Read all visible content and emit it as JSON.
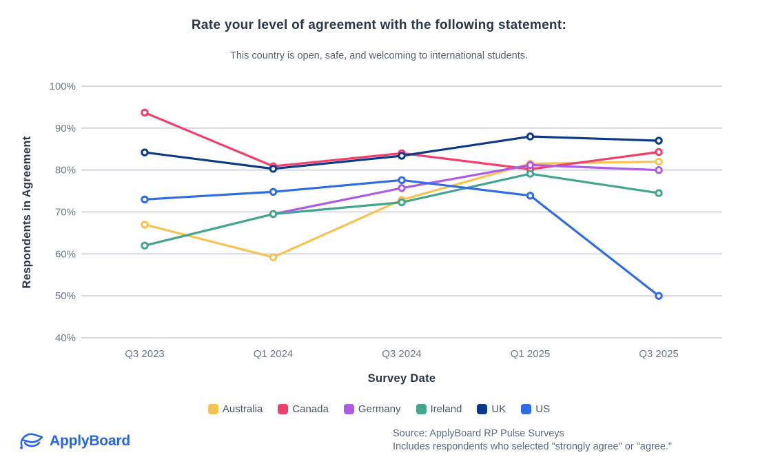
{
  "header": {
    "title": "Rate your level of agreement with the following statement:",
    "subtitle": "This country is open, safe, and welcoming to international students."
  },
  "chart_data": {
    "type": "line",
    "categories": [
      "Q3 2023",
      "Q1 2024",
      "Q3 2024",
      "Q1 2025",
      "Q3 2025"
    ],
    "xlabel": "Survey Date",
    "ylabel": "Respondents in Agreement",
    "ylim": [
      40,
      100
    ],
    "ytick_step": 10,
    "ytick_suffix": "%",
    "grid": "horizontal",
    "legend_position": "bottom",
    "series": [
      {
        "name": "Australia",
        "color": "#f6c353",
        "values": [
          67,
          59.2,
          72.9,
          81.5,
          82
        ]
      },
      {
        "name": "Canada",
        "color": "#f23e6b",
        "values": [
          93.7,
          80.9,
          84,
          80.2,
          84.3
        ]
      },
      {
        "name": "Germany",
        "color": "#ae5be8",
        "values": [
          null,
          69.5,
          75.7,
          81.2,
          80
        ]
      },
      {
        "name": "Ireland",
        "color": "#42a58c",
        "values": [
          62,
          69.5,
          72.3,
          79.1,
          74.5
        ]
      },
      {
        "name": "UK",
        "color": "#0b3a86",
        "values": [
          84.2,
          80.3,
          83.4,
          88,
          87
        ]
      },
      {
        "name": "US",
        "color": "#2f6be4",
        "values": [
          73,
          74.8,
          77.6,
          73.9,
          50
        ]
      }
    ]
  },
  "footer": {
    "logo_text": "ApplyBoard",
    "source_line1": "Source: ApplyBoard RP Pulse Surveys",
    "source_line2": "Includes respondents who selected \"strongly agree\" or \"agree.\""
  },
  "colors": {
    "title_text": "#2b3648",
    "subtitle_text": "#5a6478",
    "tick_text": "#6c7890",
    "gridline": "#c9ceda",
    "source_text": "#5c6a85",
    "logo_blue": "#2566e8"
  }
}
